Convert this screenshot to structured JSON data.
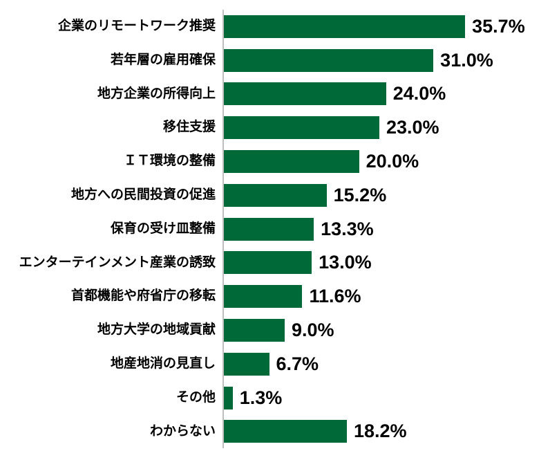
{
  "chart_data": {
    "type": "bar",
    "orientation": "horizontal",
    "title": "",
    "xlabel": "",
    "ylabel": "",
    "categories": [
      "企業のリモートワーク推奨",
      "若年層の雇用確保",
      "地方企業の所得向上",
      "移住支援",
      "ＩＴ環境の整備",
      "地方への民間投資の促進",
      "保育の受け皿整備",
      "エンターテインメント産業の誘致",
      "首都機能や府省庁の移転",
      "地方大学の地域貢献",
      "地産地消の見直し",
      "その他",
      "わからない"
    ],
    "values": [
      35.7,
      31.0,
      24.0,
      23.0,
      20.0,
      15.2,
      13.3,
      13.0,
      11.6,
      9.0,
      6.7,
      1.3,
      18.2
    ],
    "value_labels": [
      "35.7%",
      "31.0%",
      "24.0%",
      "23.0%",
      "20.0%",
      "15.2%",
      "13.3%",
      "13.0%",
      "11.6%",
      "9.0%",
      "6.7%",
      "1.3%",
      "18.2%"
    ],
    "xlim": [
      0,
      40
    ],
    "grid": false,
    "legend": false,
    "colors": {
      "bar": "#006938",
      "axis_line": "#BFBFBF",
      "label_text": "#000000",
      "value_text": "#000000"
    }
  }
}
